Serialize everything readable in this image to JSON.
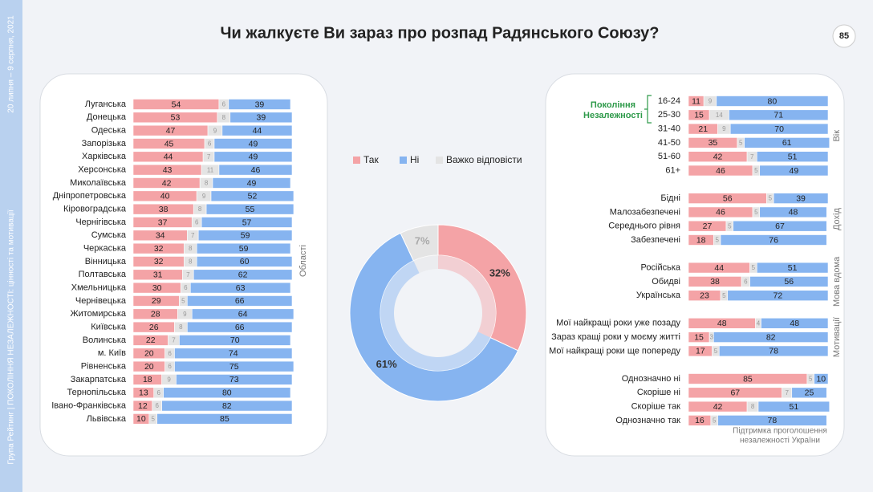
{
  "page": {
    "title": "Чи жалкуєте Ви зараз про розпад Радянського Союзу?",
    "page_number": "85",
    "sidebar_date": "20 липня – 9 серпня, 2021",
    "sidebar_org": "Група Рейтинг | ПОКОЛІННЯ НЕЗАЛЕЖНОСТІ: цінності та мотивації"
  },
  "chart_data": [
    {
      "type": "stacked-bar",
      "axis_label": "Області",
      "categories": [
        "Луганська",
        "Донецька",
        "Одеська",
        "Запорізька",
        "Харківська",
        "Херсонська",
        "Миколаївська",
        "Дніпропетровська",
        "Кіровоградська",
        "Чернігівська",
        "Сумська",
        "Черкаська",
        "Вінницька",
        "Полтавська",
        "Хмельницька",
        "Чернівецька",
        "Житомирська",
        "Київська",
        "Волинська",
        "м. Київ",
        "Рівненська",
        "Закарпатська",
        "Тернопільська",
        "Івано-Франківська",
        "Львівська"
      ],
      "series": [
        {
          "color": "#f4a3a6",
          "values": [
            54,
            53,
            47,
            45,
            44,
            43,
            42,
            40,
            38,
            37,
            34,
            32,
            32,
            31,
            30,
            29,
            28,
            26,
            22,
            20,
            20,
            18,
            13,
            12,
            10
          ]
        },
        {
          "color": "#e4e4e4",
          "values": [
            6,
            8,
            9,
            6,
            7,
            11,
            8,
            9,
            8,
            6,
            7,
            8,
            8,
            7,
            6,
            5,
            9,
            8,
            7,
            6,
            6,
            9,
            6,
            6,
            5
          ]
        },
        {
          "color": "#86b4f0",
          "values": [
            39,
            39,
            44,
            49,
            49,
            46,
            49,
            52,
            55,
            57,
            59,
            59,
            60,
            62,
            63,
            66,
            64,
            66,
            70,
            74,
            75,
            73,
            80,
            82,
            85
          ]
        }
      ],
      "xlim": [
        0,
        100
      ]
    },
    {
      "type": "pie",
      "categories": [
        "Так",
        "Ні",
        "Важко відповісти"
      ],
      "values": [
        32,
        61,
        7
      ],
      "value_labels": [
        "32%",
        "61%",
        "7%"
      ],
      "colors": [
        "#f4a3a6",
        "#86b4f0",
        "#e4e4e4"
      ]
    },
    {
      "type": "stacked-bar-groups",
      "bracket_label": [
        "Покоління",
        "Незалежності"
      ],
      "note": [
        "Підтримка проголошення",
        "незалежності України"
      ],
      "colors": [
        "#f4a3a6",
        "#e4e4e4",
        "#86b4f0"
      ],
      "xlim": [
        0,
        100
      ],
      "groups": [
        {
          "label": "Вік",
          "categories": [
            "16-24",
            "25-30",
            "31-40",
            "41-50",
            "51-60",
            "61+"
          ],
          "series": [
            {
              "values": [
                11,
                15,
                21,
                35,
                42,
                46
              ]
            },
            {
              "values": [
                9,
                14,
                9,
                5,
                7,
                5
              ]
            },
            {
              "values": [
                80,
                71,
                70,
                61,
                51,
                49
              ]
            }
          ]
        },
        {
          "label": "Дохід",
          "categories": [
            "Бідні",
            "Малозабезпечені",
            "Середнього рівня",
            "Забезпечені"
          ],
          "series": [
            {
              "values": [
                56,
                46,
                27,
                18
              ]
            },
            {
              "values": [
                5,
                5,
                5,
                5
              ]
            },
            {
              "values": [
                39,
                48,
                67,
                76
              ]
            }
          ]
        },
        {
          "label": "Мова вдома",
          "categories": [
            "Російська",
            "Обидві",
            "Українська"
          ],
          "series": [
            {
              "values": [
                44,
                38,
                23
              ]
            },
            {
              "values": [
                5,
                6,
                5
              ]
            },
            {
              "values": [
                51,
                56,
                72
              ]
            }
          ]
        },
        {
          "label": "Мотивації",
          "categories": [
            "Мої найкращі роки уже позаду",
            "Зараз кращі роки у моєму житті",
            "Мої найкращі роки ще попереду"
          ],
          "series": [
            {
              "values": [
                48,
                15,
                17
              ]
            },
            {
              "values": [
                4,
                3,
                5
              ]
            },
            {
              "values": [
                48,
                82,
                78
              ]
            }
          ]
        },
        {
          "categories": [
            "Однозначно ні",
            "Скоріше ні",
            "Скоріше так",
            "Однозначно так"
          ],
          "series": [
            {
              "values": [
                85,
                67,
                42,
                16
              ]
            },
            {
              "values": [
                5,
                7,
                8,
                5
              ]
            },
            {
              "values": [
                10,
                25,
                51,
                78
              ]
            }
          ]
        }
      ]
    }
  ]
}
